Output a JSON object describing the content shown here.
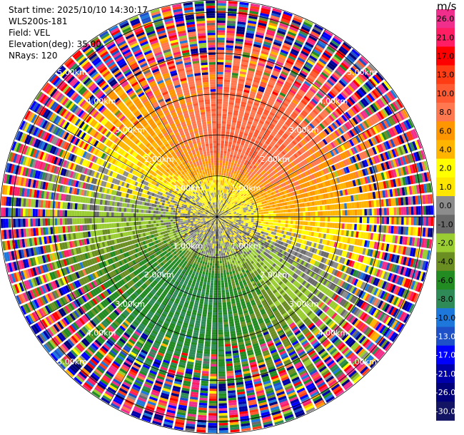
{
  "header": {
    "start_time": "Start time: 2025/10/10 14:30:17",
    "station": "WLS200s-181",
    "field": "Field: VEL",
    "elevation": "Elevation(deg): 35.00",
    "nrays": "NRays: 120"
  },
  "colorbar": {
    "unit": "m/s",
    "ticks": [
      "26.0",
      "21.0",
      "17.0",
      "13.0",
      "10.0",
      "8.0",
      "6.0",
      "4.0",
      "2.0",
      "1.0",
      "0.0",
      "-1.0",
      "-2.0",
      "-4.0",
      "-6.0",
      "-8.0",
      "-10.0",
      "-13.0",
      "-17.0",
      "-21.0",
      "-26.0",
      "-30.0"
    ],
    "colors": [
      "#f02f8c",
      "#ff1e64",
      "#ff0000",
      "#ff3c14",
      "#ff5a32",
      "#ff7850",
      "#ff9600",
      "#ffb400",
      "#ffff00",
      "#ffe600",
      "#8c8c8c",
      "#6a6a6a",
      "#9acd32",
      "#6b8e23",
      "#228b22",
      "#2e8b57",
      "#1e78dc",
      "#1e50c8",
      "#0000ff",
      "#0000aa",
      "#00007a",
      "#141464"
    ]
  },
  "chart_data": {
    "type": "heatmap",
    "subtype": "ppi_polar",
    "field": "VEL",
    "unit": "m/s",
    "n_rays": 120,
    "elevation_deg": 35.0,
    "range_rings_km": [
      1,
      2,
      3,
      4,
      5
    ],
    "ring_labels": [
      "1.00km",
      "2.00km",
      "3.00km",
      "4.00km",
      "5.00km"
    ],
    "max_range_km": 5.3,
    "velocity_pattern": {
      "north_sector": "positive 4 to 10 m/s (orange)",
      "northeast_sector": "positive 10 to 21 m/s (red)",
      "south_sector": "negative -4 to -13 m/s (green to blue)",
      "near_center": "near zero (gray, yellow, yellow-green)",
      "outer_range": "noisy / folded values"
    }
  }
}
